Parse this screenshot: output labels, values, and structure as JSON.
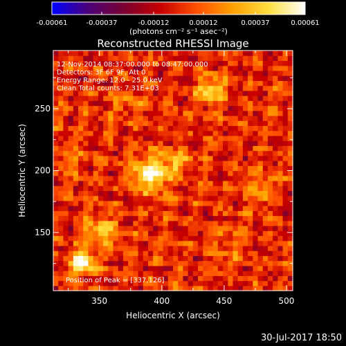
{
  "chart_data": {
    "type": "heatmap",
    "title": "Reconstructed RHESSI Image",
    "xlabel": "Heliocentric X (arcsec)",
    "ylabel": "Heliocentric Y (arcsec)",
    "xlim": [
      313,
      505
    ],
    "ylim": [
      103,
      297
    ],
    "x_ticks": [
      350,
      400,
      450,
      500
    ],
    "y_ticks": [
      150,
      200,
      250
    ],
    "colorbar": {
      "range": [
        -0.00061,
        0.00061
      ],
      "tick_labels": [
        "-0.00061",
        "-0.00037",
        "-0.00012",
        "0.00012",
        "0.00037",
        "0.00061"
      ],
      "unit": "(photons cm⁻² s⁻¹ asec⁻²)",
      "stops": [
        "#0000ff",
        "#4b007a",
        "#7a0030",
        "#c80000",
        "#ff5000",
        "#ffa000",
        "#ffe040",
        "#ffffff"
      ]
    },
    "annotations": [
      "12-Nov-2014 08:37:00.000 to 08:47:00.000",
      "Detectors: 3F 6F 9F, Att 0",
      "Energy Range: 12.0 - 25.0 keV",
      "Clean     Total counts: 7.31E+03"
    ],
    "peak_label": "Position of Peak = [337,126]",
    "sources": [
      {
        "x": 337,
        "y": 126,
        "amp": 0.00061,
        "sigma": 7
      },
      {
        "x": 352,
        "y": 150,
        "amp": 0.00035,
        "sigma": 9
      },
      {
        "x": 392,
        "y": 198,
        "amp": 0.00058,
        "sigma": 10
      },
      {
        "x": 412,
        "y": 208,
        "amp": 0.0003,
        "sigma": 7
      },
      {
        "x": 440,
        "y": 265,
        "amp": 0.00042,
        "sigma": 8
      },
      {
        "x": 480,
        "y": 185,
        "amp": 0.00022,
        "sigma": 10
      },
      {
        "x": 370,
        "y": 255,
        "amp": 0.00018,
        "sigma": 9
      },
      {
        "x": 455,
        "y": 140,
        "amp": 0.00015,
        "sigma": 10
      },
      {
        "x": 325,
        "y": 210,
        "amp": 0.00016,
        "sigma": 8
      }
    ],
    "grid": false
  },
  "date_stamp": "30-Jul-2017 18:50"
}
